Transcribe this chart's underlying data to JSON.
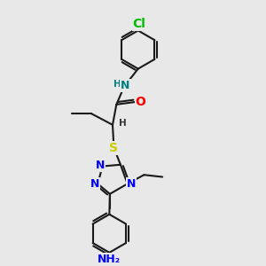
{
  "bg_color": "#e8e8e8",
  "bond_color": "#1a1a1a",
  "bond_width": 1.5,
  "atom_colors": {
    "N": "#0000ff",
    "O": "#ff0000",
    "S": "#cccc00",
    "Cl": "#00bb00",
    "NH": "#008080",
    "NH2": "#0000ff",
    "H": "#333333"
  },
  "font_size": 8.5
}
